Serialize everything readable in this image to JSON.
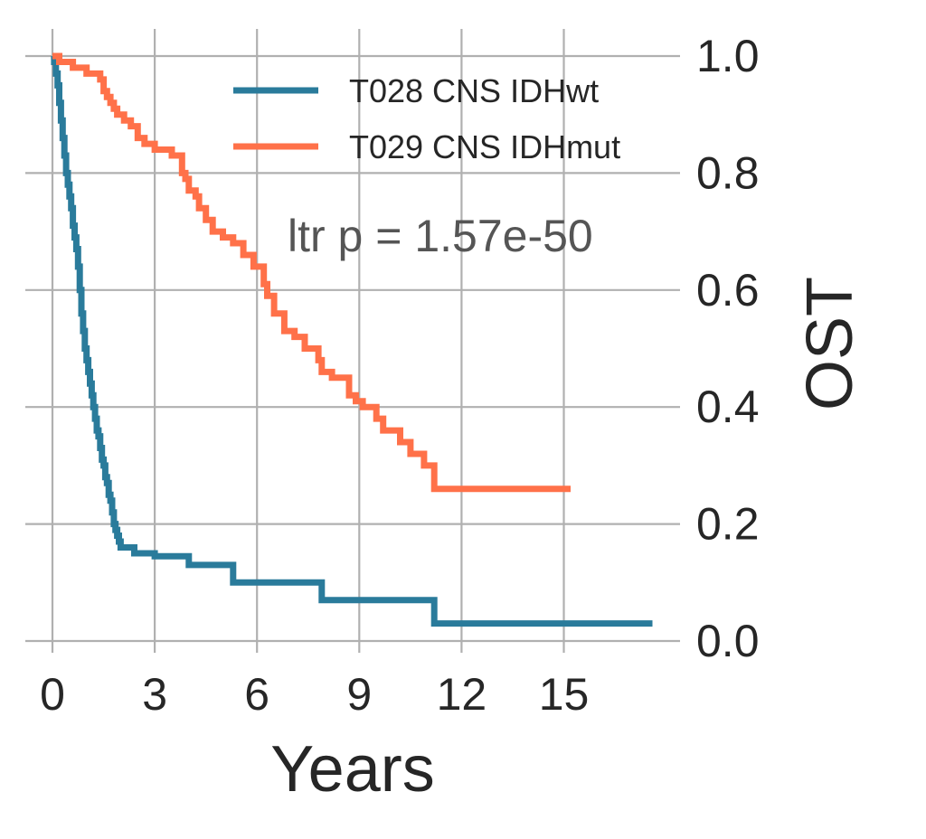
{
  "chart_data": {
    "type": "line",
    "xlabel": "Years",
    "ylabel": "OST",
    "xlim": [
      -0.8,
      18.5
    ],
    "ylim": [
      0.0,
      1.0
    ],
    "xticks": [
      "0",
      "3",
      "6",
      "9",
      "12",
      "15"
    ],
    "xtick_values": [
      0,
      3,
      6,
      9,
      12,
      15
    ],
    "yticks": [
      "0.0",
      "0.2",
      "0.4",
      "0.6",
      "0.8",
      "1.0"
    ],
    "ytick_values": [
      0.0,
      0.2,
      0.4,
      0.6,
      0.8,
      1.0
    ],
    "yaxis_side": "right",
    "grid": true,
    "legend_position": "top-right",
    "annotation": "ltr p = 1.57e-50",
    "series": [
      {
        "name": "T028 CNS IDHwt",
        "color": "#2a7b9b",
        "x": [
          0,
          0.05,
          0.1,
          0.15,
          0.2,
          0.25,
          0.3,
          0.35,
          0.4,
          0.45,
          0.5,
          0.55,
          0.6,
          0.65,
          0.7,
          0.75,
          0.8,
          0.85,
          0.9,
          0.95,
          1.0,
          1.05,
          1.1,
          1.15,
          1.2,
          1.25,
          1.3,
          1.35,
          1.4,
          1.45,
          1.5,
          1.55,
          1.6,
          1.65,
          1.7,
          1.75,
          1.8,
          1.85,
          1.9,
          1.95,
          2.0,
          2.1,
          2.2,
          2.3,
          2.4,
          2.6,
          2.8,
          3.0,
          4.0,
          5.3,
          7.9,
          11.2,
          17.6
        ],
        "y": [
          1.0,
          0.99,
          0.97,
          0.95,
          0.92,
          0.89,
          0.86,
          0.83,
          0.8,
          0.78,
          0.76,
          0.74,
          0.71,
          0.69,
          0.67,
          0.64,
          0.6,
          0.56,
          0.53,
          0.5,
          0.48,
          0.46,
          0.44,
          0.42,
          0.4,
          0.38,
          0.36,
          0.35,
          0.33,
          0.31,
          0.3,
          0.28,
          0.27,
          0.25,
          0.24,
          0.22,
          0.2,
          0.19,
          0.18,
          0.17,
          0.16,
          0.16,
          0.16,
          0.16,
          0.15,
          0.15,
          0.15,
          0.145,
          0.13,
          0.1,
          0.07,
          0.03,
          0.03
        ]
      },
      {
        "name": "T029 CNS IDHmut",
        "color": "#ff7149",
        "x": [
          0,
          0.2,
          0.4,
          0.6,
          0.8,
          1.0,
          1.2,
          1.4,
          1.5,
          1.6,
          1.7,
          1.8,
          1.9,
          2.0,
          2.1,
          2.3,
          2.5,
          2.7,
          2.9,
          3.0,
          3.2,
          3.5,
          3.8,
          3.9,
          4.0,
          4.2,
          4.3,
          4.5,
          4.7,
          5.0,
          5.3,
          5.6,
          5.9,
          6.2,
          6.3,
          6.5,
          6.8,
          7.1,
          7.4,
          7.8,
          7.9,
          8.2,
          8.7,
          8.9,
          9.1,
          9.5,
          9.7,
          10.2,
          10.5,
          10.9,
          11.2,
          15.2
        ],
        "y": [
          1.0,
          0.99,
          0.99,
          0.98,
          0.98,
          0.97,
          0.97,
          0.96,
          0.94,
          0.93,
          0.92,
          0.91,
          0.9,
          0.9,
          0.89,
          0.88,
          0.86,
          0.85,
          0.85,
          0.84,
          0.84,
          0.83,
          0.8,
          0.79,
          0.77,
          0.76,
          0.74,
          0.72,
          0.7,
          0.69,
          0.68,
          0.66,
          0.64,
          0.61,
          0.59,
          0.56,
          0.53,
          0.52,
          0.5,
          0.48,
          0.46,
          0.45,
          0.42,
          0.41,
          0.4,
          0.38,
          0.36,
          0.34,
          0.32,
          0.3,
          0.26,
          0.26
        ]
      }
    ]
  }
}
